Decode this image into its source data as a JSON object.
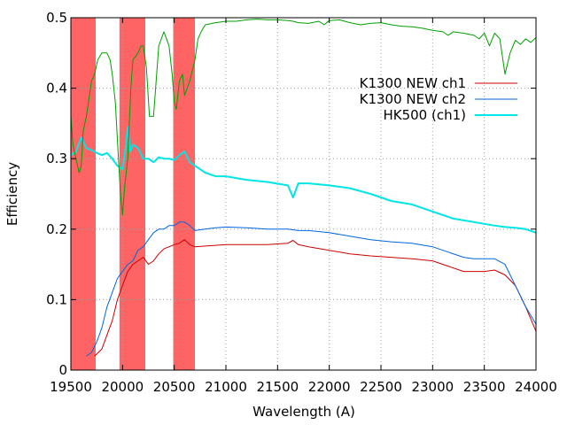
{
  "chart_data": {
    "type": "line",
    "title": "",
    "xlabel": "Wavelength (A)",
    "ylabel": "Efficiency",
    "xlim": [
      19500,
      24000
    ],
    "ylim": [
      0,
      0.5
    ],
    "x_ticks": [
      19500,
      20000,
      20500,
      21000,
      21500,
      22000,
      22500,
      23000,
      23500,
      24000
    ],
    "y_ticks": [
      0,
      0.1,
      0.2,
      0.3,
      0.4,
      0.5
    ],
    "x_tick_labels": [
      "19500",
      "20000",
      "20500",
      "21000",
      "21500",
      "22000",
      "22500",
      "23000",
      "23500",
      "24000"
    ],
    "y_tick_labels": [
      "0",
      "0.1",
      "0.2",
      "0.3",
      "0.4",
      "0.5"
    ],
    "grid": true,
    "legend_position": "top-right",
    "shaded_bands": [
      {
        "x0": 19500,
        "x1": 19740,
        "color": "#ff6464"
      },
      {
        "x0": 19970,
        "x1": 20220,
        "color": "#ff6464"
      },
      {
        "x0": 20490,
        "x1": 20700,
        "color": "#ff6464"
      }
    ],
    "series": [
      {
        "name": "K1300 NEW ch1",
        "color": "#cc0000",
        "width": 1,
        "x": [
          19730,
          19800,
          19850,
          19900,
          19950,
          20000,
          20050,
          20100,
          20150,
          20200,
          20250,
          20300,
          20350,
          20400,
          20450,
          20500,
          20550,
          20600,
          20650,
          20700,
          20800,
          20900,
          21000,
          21200,
          21400,
          21600,
          21650,
          21700,
          21800,
          22000,
          22200,
          22400,
          22600,
          22800,
          23000,
          23100,
          23300,
          23400,
          23500,
          23600,
          23700,
          23800,
          23900,
          24000
        ],
        "y": [
          0.02,
          0.03,
          0.05,
          0.07,
          0.1,
          0.12,
          0.14,
          0.15,
          0.155,
          0.16,
          0.15,
          0.155,
          0.165,
          0.172,
          0.175,
          0.178,
          0.18,
          0.185,
          0.178,
          0.175,
          0.176,
          0.177,
          0.178,
          0.178,
          0.178,
          0.18,
          0.184,
          0.178,
          0.175,
          0.17,
          0.165,
          0.162,
          0.16,
          0.158,
          0.155,
          0.15,
          0.14,
          0.14,
          0.14,
          0.142,
          0.135,
          0.12,
          0.09,
          0.055
        ]
      },
      {
        "name": "K1300 NEW ch2",
        "color": "#0066dd",
        "width": 1,
        "x": [
          19650,
          19700,
          19750,
          19800,
          19850,
          19900,
          19950,
          20000,
          20050,
          20100,
          20150,
          20200,
          20250,
          20300,
          20350,
          20400,
          20450,
          20500,
          20550,
          20600,
          20650,
          20700,
          20800,
          20900,
          21000,
          21200,
          21400,
          21600,
          21700,
          21800,
          22000,
          22200,
          22400,
          22600,
          22800,
          23000,
          23100,
          23300,
          23400,
          23500,
          23600,
          23700,
          23800,
          23900,
          24000
        ],
        "y": [
          0.02,
          0.025,
          0.04,
          0.06,
          0.09,
          0.11,
          0.13,
          0.14,
          0.15,
          0.155,
          0.17,
          0.175,
          0.185,
          0.195,
          0.2,
          0.2,
          0.205,
          0.205,
          0.21,
          0.21,
          0.205,
          0.198,
          0.2,
          0.202,
          0.203,
          0.202,
          0.2,
          0.2,
          0.198,
          0.198,
          0.195,
          0.19,
          0.185,
          0.182,
          0.18,
          0.175,
          0.17,
          0.16,
          0.158,
          0.158,
          0.158,
          0.15,
          0.12,
          0.09,
          0.065
        ]
      },
      {
        "name": "HK500 (ch1)",
        "color": "#00e6e6",
        "width": 2,
        "x": [
          19500,
          19550,
          19600,
          19650,
          19700,
          19750,
          19800,
          19850,
          19900,
          19950,
          20000,
          20025,
          20050,
          20075,
          20100,
          20150,
          20200,
          20250,
          20300,
          20350,
          20400,
          20450,
          20500,
          20550,
          20600,
          20650,
          20700,
          20800,
          20900,
          21000,
          21200,
          21400,
          21600,
          21650,
          21700,
          21800,
          22000,
          22200,
          22400,
          22600,
          22800,
          23000,
          23100,
          23200,
          23400,
          23600,
          23700,
          23800,
          23900,
          24000
        ],
        "y": [
          0.305,
          0.31,
          0.33,
          0.315,
          0.312,
          0.308,
          0.305,
          0.308,
          0.3,
          0.29,
          0.285,
          0.31,
          0.345,
          0.31,
          0.32,
          0.315,
          0.3,
          0.3,
          0.295,
          0.302,
          0.3,
          0.3,
          0.298,
          0.305,
          0.31,
          0.295,
          0.29,
          0.28,
          0.275,
          0.275,
          0.27,
          0.267,
          0.262,
          0.245,
          0.265,
          0.265,
          0.262,
          0.258,
          0.25,
          0.24,
          0.235,
          0.225,
          0.22,
          0.215,
          0.21,
          0.205,
          0.203,
          0.202,
          0.2,
          0.195
        ]
      },
      {
        "name": "",
        "color": "#00a000",
        "width": 1,
        "x": [
          19500,
          19520,
          19550,
          19580,
          19600,
          19620,
          19650,
          19680,
          19700,
          19730,
          19760,
          19800,
          19850,
          19880,
          19900,
          19930,
          19960,
          19980,
          20000,
          20020,
          20050,
          20080,
          20100,
          20150,
          20180,
          20200,
          20230,
          20260,
          20300,
          20350,
          20400,
          20450,
          20480,
          20500,
          20520,
          20550,
          20580,
          20600,
          20650,
          20700,
          20730,
          20760,
          20800,
          20900,
          21000,
          21100,
          21200,
          21300,
          21400,
          21500,
          21600,
          21650,
          21700,
          21800,
          21900,
          21950,
          22000,
          22100,
          22200,
          22300,
          22400,
          22500,
          22600,
          22700,
          22800,
          22900,
          23000,
          23100,
          23150,
          23200,
          23300,
          23400,
          23450,
          23500,
          23550,
          23600,
          23650,
          23700,
          23750,
          23800,
          23850,
          23900,
          23950,
          24000
        ],
        "y": [
          0.36,
          0.32,
          0.3,
          0.28,
          0.29,
          0.34,
          0.36,
          0.39,
          0.41,
          0.42,
          0.44,
          0.45,
          0.45,
          0.44,
          0.42,
          0.38,
          0.3,
          0.25,
          0.22,
          0.26,
          0.3,
          0.4,
          0.44,
          0.45,
          0.46,
          0.46,
          0.43,
          0.36,
          0.36,
          0.46,
          0.48,
          0.46,
          0.42,
          0.38,
          0.37,
          0.41,
          0.42,
          0.39,
          0.41,
          0.44,
          0.47,
          0.48,
          0.49,
          0.493,
          0.495,
          0.495,
          0.497,
          0.498,
          0.497,
          0.497,
          0.496,
          0.495,
          0.493,
          0.492,
          0.495,
          0.49,
          0.496,
          0.497,
          0.493,
          0.49,
          0.492,
          0.493,
          0.49,
          0.488,
          0.487,
          0.485,
          0.482,
          0.48,
          0.475,
          0.48,
          0.478,
          0.475,
          0.47,
          0.478,
          0.46,
          0.478,
          0.47,
          0.42,
          0.45,
          0.468,
          0.462,
          0.47,
          0.465,
          0.472
        ]
      }
    ]
  }
}
